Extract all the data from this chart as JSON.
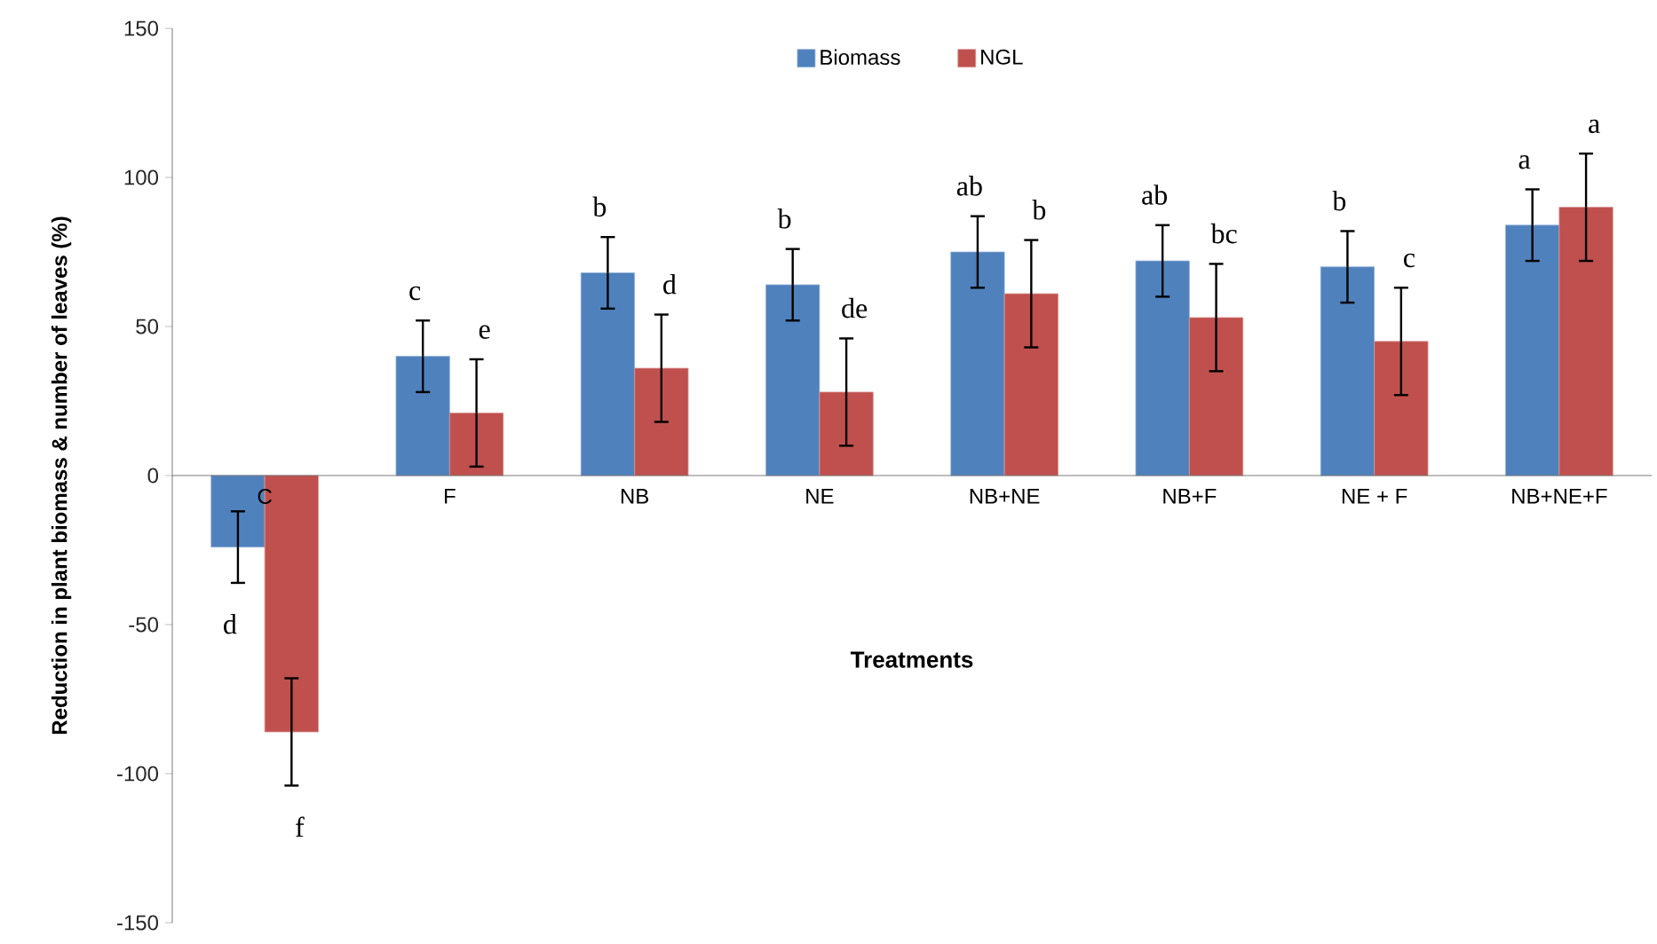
{
  "chart_data": {
    "type": "bar",
    "xlabel": "Treatments",
    "ylabel": "Reduction in plant biomass & number of leaves (%)",
    "categories": [
      "C",
      "F",
      "NB",
      "NE",
      "NB+NE",
      "NB+F",
      "NE + F",
      "NB+NE+F"
    ],
    "series": [
      {
        "name": "Biomass",
        "color": "#4f81bd",
        "values": [
          -24,
          40,
          68,
          64,
          75,
          72,
          70,
          84
        ],
        "errors": [
          12,
          12,
          12,
          12,
          12,
          12,
          12,
          12
        ]
      },
      {
        "name": "NGL",
        "color": "#c0504d",
        "values": [
          -86,
          21,
          36,
          28,
          61,
          53,
          45,
          90
        ],
        "errors": [
          18,
          18,
          18,
          18,
          18,
          18,
          18,
          18
        ]
      }
    ],
    "ylim": [
      -150,
      150
    ],
    "yticks": [
      -150,
      -100,
      -50,
      0,
      50,
      100,
      150
    ],
    "legend": "top",
    "annotations": [
      "d",
      "f",
      "c",
      "e",
      "b",
      "d",
      "b",
      "de",
      "ab",
      "b",
      "ab",
      "bc",
      "b",
      "c",
      "a",
      "a"
    ]
  }
}
